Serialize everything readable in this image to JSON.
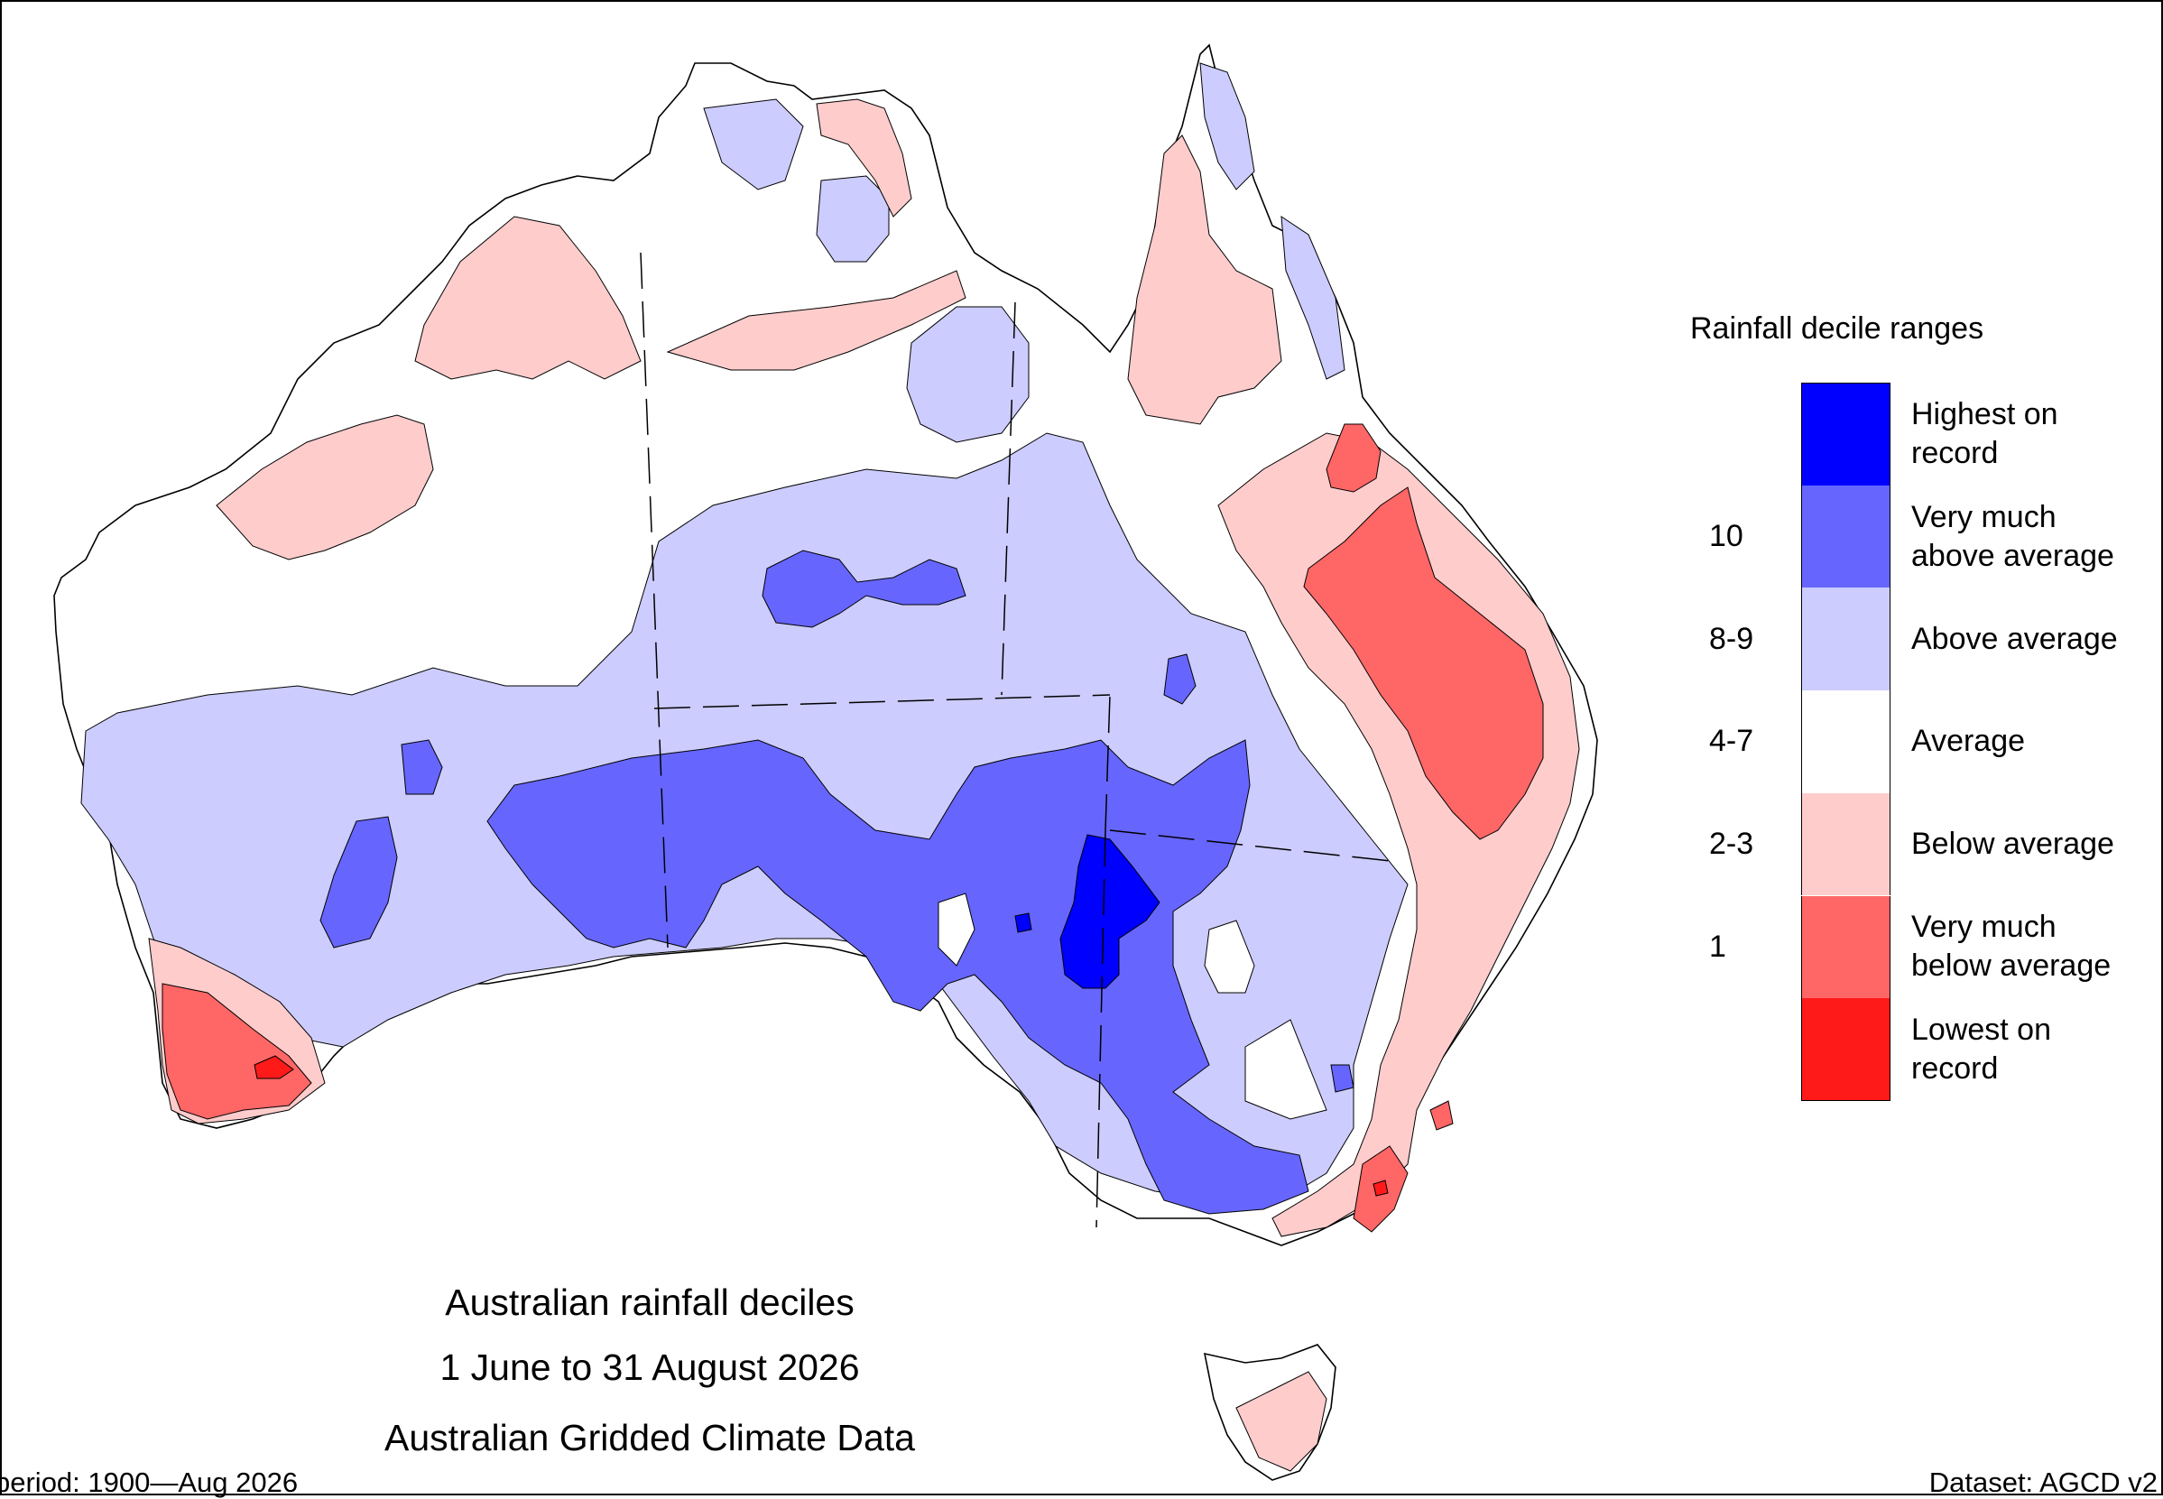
{
  "titles": {
    "line1": "Australian rainfall deciles",
    "line2": "1 June to 31 August 2026",
    "line3": "Australian Gridded Climate Data"
  },
  "legend": {
    "title": "Rainfall decile ranges",
    "rows": [
      {
        "decile": "",
        "label": "Highest on\nrecord",
        "color": "#0000ff"
      },
      {
        "decile": "10",
        "label": "Very much\nabove average",
        "color": "#6666ff"
      },
      {
        "decile": "8-9",
        "label": "Above average",
        "color": "#ccccff"
      },
      {
        "decile": "4-7",
        "label": "Average",
        "color": "#ffffff"
      },
      {
        "decile": "2-3",
        "label": "Below average",
        "color": "#ffcccc"
      },
      {
        "decile": "1",
        "label": "Very much\nbelow average",
        "color": "#ff6666"
      },
      {
        "decile": "",
        "label": "Lowest on\nrecord",
        "color": "#ff1a1a"
      }
    ]
  },
  "footer": {
    "left": "period: 1900—Aug 2026",
    "right": "Dataset: AGCD v2"
  },
  "colors": {
    "highest": "#0000ff",
    "very_much_above": "#6666ff",
    "above": "#ccccff",
    "average": "#ffffff",
    "below": "#ffcccc",
    "very_much_below": "#ff6666",
    "lowest": "#ff1a1a"
  }
}
